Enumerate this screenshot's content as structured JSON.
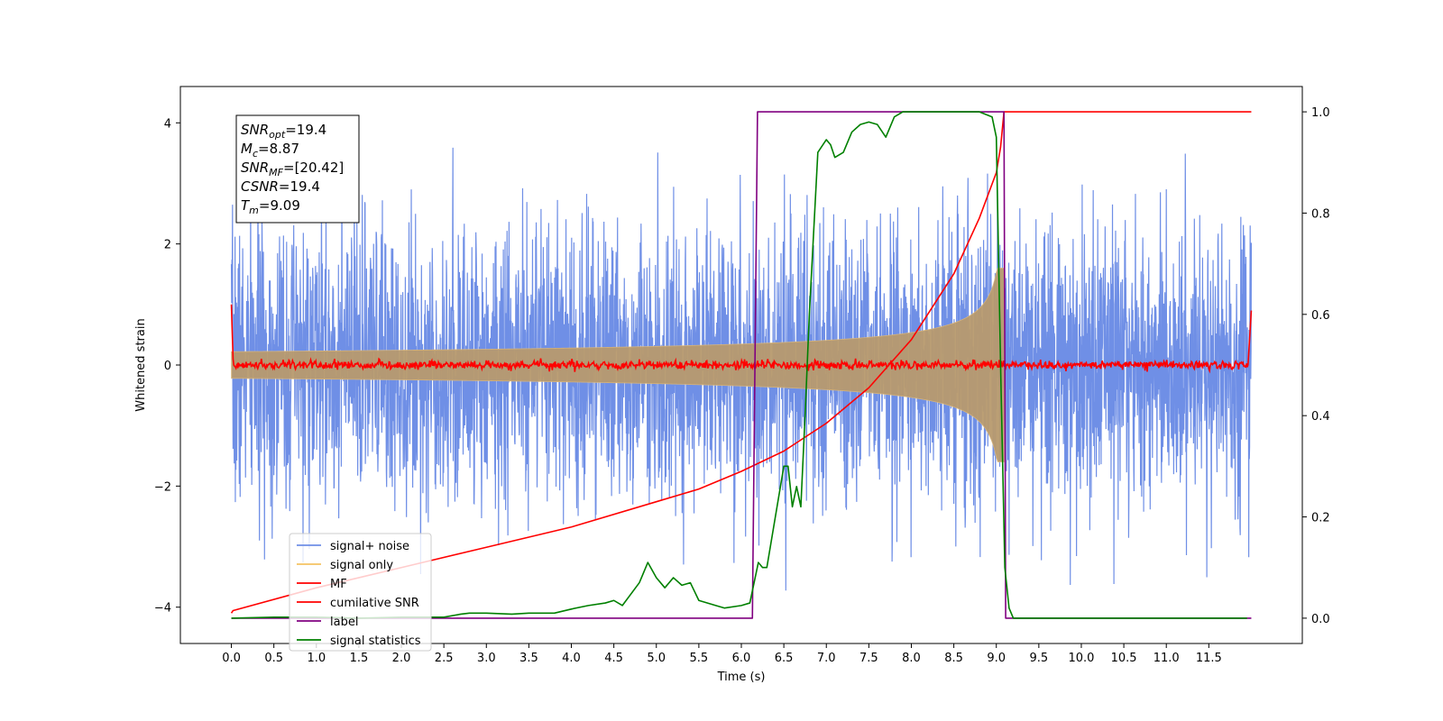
{
  "chart_data": {
    "type": "line",
    "xlabel": "Time (s)",
    "ylabel": "Whitened strain",
    "xlim": [
      -0.6,
      12.6
    ],
    "ylim": [
      -4.6,
      4.6
    ],
    "y2lim": [
      -0.05,
      1.05
    ],
    "x_ticks": [
      "0.0",
      "0.5",
      "1.0",
      "1.5",
      "2.0",
      "2.5",
      "3.0",
      "3.5",
      "4.0",
      "4.5",
      "5.0",
      "5.5",
      "6.0",
      "6.5",
      "7.0",
      "7.5",
      "8.0",
      "8.5",
      "9.0",
      "9.5",
      "10.0",
      "10.5",
      "11.0",
      "11.5"
    ],
    "y_ticks": [
      "4",
      "2",
      "0",
      "−2",
      "−4"
    ],
    "y2_ticks": [
      "1.0",
      "0.8",
      "0.6",
      "0.4",
      "0.2",
      "0.0"
    ],
    "grid": false,
    "legend_position": "lower-left",
    "annotation": {
      "lines": [
        {
          "sym": "SNR",
          "sub": "opt",
          "val": "=19.4"
        },
        {
          "sym": "M",
          "sub": "c",
          "val": "=8.87"
        },
        {
          "sym": "SNR",
          "sub": "MF",
          "val": "=[20.42]"
        },
        {
          "sym": "CSNR",
          "sub": "",
          "val": "=19.4"
        },
        {
          "sym": "T",
          "sub": "m",
          "val": "=9.09"
        }
      ]
    },
    "signal_noise": {
      "t_start": 0.0,
      "t_end": 12.0,
      "sigma": 1.15,
      "max_abs": 4.1
    },
    "signal_only": {
      "t_start": 0.0,
      "t_end": 9.09,
      "peak_amplitude": 1.6,
      "merger_time": 9.09
    },
    "mf": {
      "t_start": 0.0,
      "t_end": 12.0,
      "baseline": 0.0,
      "noise": 0.05,
      "start_value": 1.0,
      "end_value": 0.9
    },
    "cumulative_snr": {
      "axis": "right",
      "x": [
        0.0,
        0.02,
        1,
        2,
        3,
        4,
        5,
        5.5,
        6,
        6.5,
        7,
        7.5,
        8,
        8.5,
        8.8,
        9.0,
        9.05,
        9.09,
        12.0
      ],
      "y": [
        0.01,
        0.015,
        0.06,
        0.1,
        0.14,
        0.18,
        0.23,
        0.255,
        0.29,
        0.33,
        0.385,
        0.455,
        0.55,
        0.68,
        0.79,
        0.88,
        0.93,
        1.0,
        1.0
      ]
    },
    "label": {
      "axis": "right",
      "x": [
        0.0,
        6.13,
        6.19,
        9.09,
        9.11,
        12.0
      ],
      "y": [
        0.0,
        0.0,
        1.0,
        1.0,
        0.0,
        0.0
      ]
    },
    "signal_statistics": {
      "axis": "right",
      "x": [
        0.0,
        0.5,
        1.0,
        1.5,
        2.0,
        2.5,
        2.7,
        2.8,
        3.0,
        3.3,
        3.5,
        3.8,
        4.0,
        4.2,
        4.4,
        4.5,
        4.6,
        4.8,
        4.9,
        5.0,
        5.1,
        5.2,
        5.3,
        5.4,
        5.5,
        5.7,
        5.8,
        6.0,
        6.1,
        6.2,
        6.25,
        6.3,
        6.4,
        6.5,
        6.55,
        6.6,
        6.65,
        6.7,
        6.75,
        6.8,
        6.9,
        7.0,
        7.05,
        7.1,
        7.2,
        7.3,
        7.4,
        7.5,
        7.6,
        7.7,
        7.8,
        7.9,
        8.0,
        8.5,
        8.8,
        8.95,
        9.0,
        9.05,
        9.1,
        9.15,
        9.2,
        11.95
      ],
      "y": [
        0.0,
        0.002,
        0.002,
        0.0,
        0.002,
        0.002,
        0.008,
        0.01,
        0.01,
        0.008,
        0.01,
        0.01,
        0.018,
        0.025,
        0.03,
        0.035,
        0.025,
        0.07,
        0.11,
        0.08,
        0.06,
        0.08,
        0.065,
        0.07,
        0.035,
        0.025,
        0.02,
        0.025,
        0.03,
        0.11,
        0.1,
        0.1,
        0.2,
        0.3,
        0.3,
        0.22,
        0.26,
        0.22,
        0.4,
        0.6,
        0.92,
        0.945,
        0.935,
        0.91,
        0.92,
        0.96,
        0.975,
        0.98,
        0.975,
        0.95,
        0.99,
        1.0,
        1.0,
        1.0,
        1.0,
        0.99,
        0.95,
        0.5,
        0.1,
        0.02,
        0.0,
        0.0
      ]
    },
    "legend": [
      {
        "name": "signal+ noise",
        "color": "#6f8fe6"
      },
      {
        "name": "signal only",
        "color": "#f5c262"
      },
      {
        "name": "MF",
        "color": "#ff0000"
      },
      {
        "name": "cumilative SNR",
        "color": "#ff0000"
      },
      {
        "name": "label",
        "color": "#800080"
      },
      {
        "name": "signal statistics",
        "color": "#008000"
      }
    ],
    "colors": {
      "signal_noise": "#6f8fe6",
      "signal_only": "#d9b57a",
      "signal_only_fill": "#b89a6e",
      "mf": "#ff0000",
      "cumulative_snr": "#ff0000",
      "label": "#800080",
      "signal_statistics": "#008000"
    }
  }
}
